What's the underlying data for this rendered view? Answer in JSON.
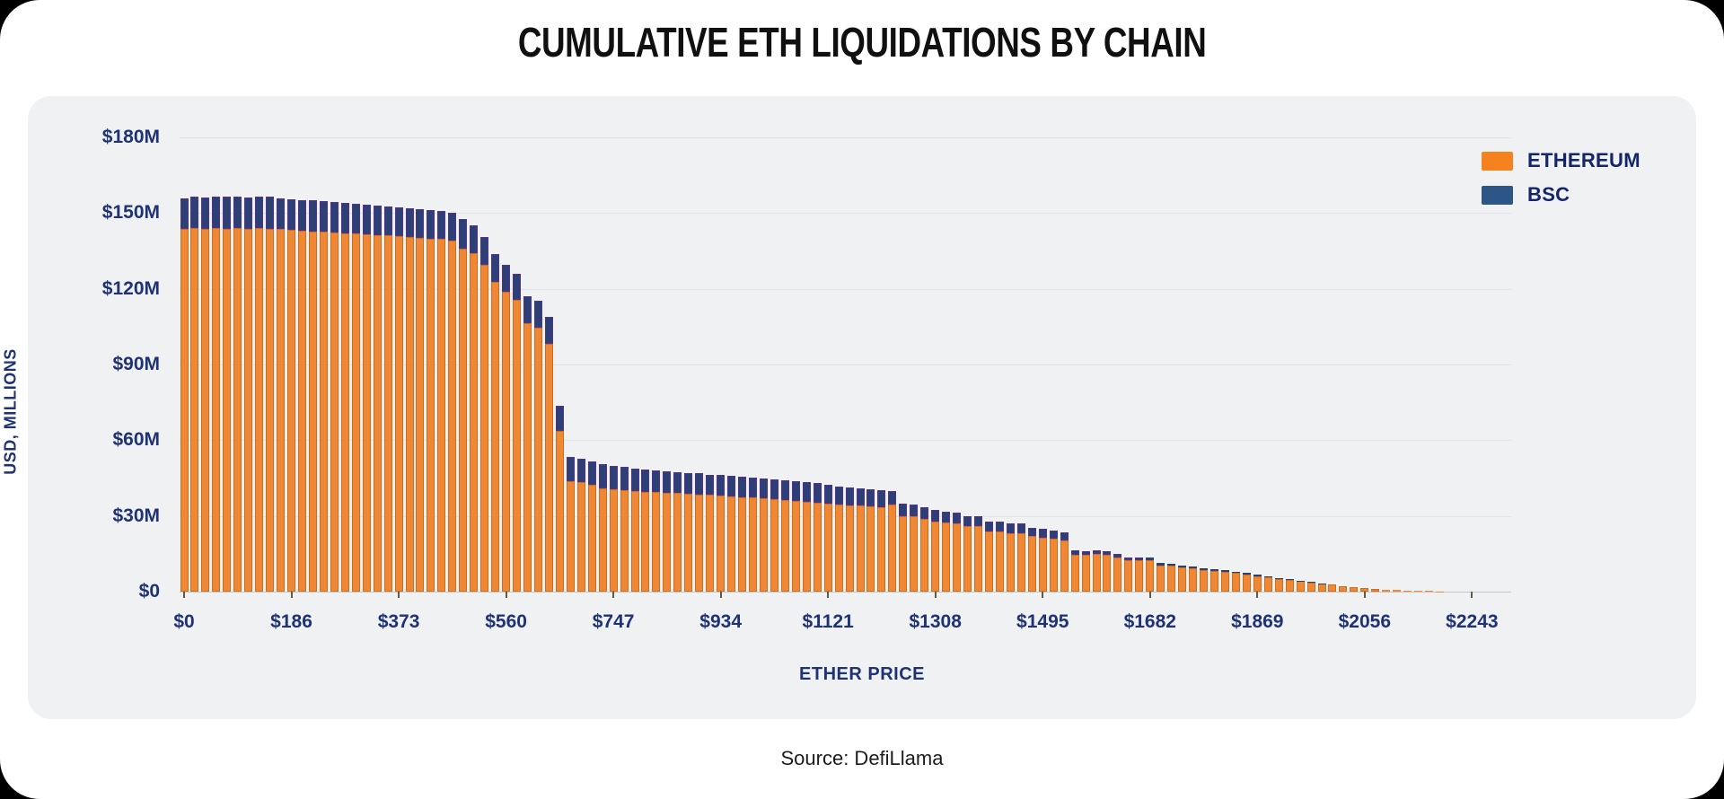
{
  "page": {
    "source": "Source: DefiLlama"
  },
  "legend": [
    {
      "label": "ETHEREUM",
      "color": "#f5821f"
    },
    {
      "label": "BSC",
      "color": "#2d5585"
    }
  ],
  "chart_data": {
    "type": "bar",
    "stacked": true,
    "title": "CUMULATIVE ETH LIQUIDATIONS BY CHAIN",
    "xlabel": "ETHER PRICE",
    "ylabel": "USD, MILLIONS",
    "x_tick_labels": [
      "$0",
      "$186",
      "$373",
      "$560",
      "$747",
      "$934",
      "$1121",
      "$1308",
      "$1495",
      "$1682",
      "$1869",
      "$2056",
      "$2243"
    ],
    "y_tick_labels": [
      "$0",
      "$30M",
      "$60M",
      "$90M",
      "$120M",
      "$150M",
      "$180M"
    ],
    "ylim": [
      0,
      180
    ],
    "y_unit": "USD millions",
    "x_unit": "ETH price (USD), bar step ≈ $18.7",
    "grid": "horizontal",
    "legend_position": "top-right",
    "prices": [
      0,
      19,
      37,
      56,
      75,
      93,
      112,
      131,
      150,
      168,
      187,
      206,
      224,
      243,
      262,
      280,
      299,
      318,
      336,
      355,
      374,
      393,
      411,
      430,
      449,
      467,
      486,
      505,
      523,
      542,
      561,
      580,
      598,
      617,
      636,
      654,
      673,
      692,
      710,
      729,
      748,
      766,
      785,
      804,
      822,
      841,
      860,
      879,
      897,
      916,
      935,
      953,
      972,
      991,
      1009,
      1028,
      1047,
      1065,
      1084,
      1103,
      1121,
      1140,
      1159,
      1177,
      1196,
      1215,
      1233,
      1252,
      1271,
      1290,
      1308,
      1327,
      1346,
      1364,
      1383,
      1402,
      1421,
      1439,
      1458,
      1477,
      1495,
      1514,
      1533,
      1551,
      1570,
      1589,
      1608,
      1626,
      1645,
      1664,
      1682,
      1701,
      1720,
      1738,
      1757,
      1776,
      1795,
      1813,
      1832,
      1851,
      1869,
      1888,
      1907,
      1925,
      1944,
      1963,
      1982,
      2000,
      2019,
      2038,
      2056,
      2075,
      2094,
      2113,
      2131,
      2150,
      2169,
      2187,
      2206,
      2225,
      2243,
      2262,
      2281,
      2300
    ],
    "series": [
      {
        "name": "ETHEREUM",
        "color": "#ef8735",
        "border_color": "#c96f1e",
        "values": [
          143.8,
          144.0,
          143.8,
          144.2,
          143.9,
          144.0,
          143.8,
          144.1,
          143.9,
          143.6,
          143.3,
          143.0,
          142.8,
          142.6,
          142.4,
          142.1,
          141.8,
          141.5,
          141.3,
          141.1,
          140.9,
          140.6,
          140.3,
          140.0,
          139.7,
          139.2,
          135.9,
          134.1,
          129.4,
          122.9,
          118.8,
          115.5,
          106.4,
          104.7,
          98.2,
          63.7,
          43.7,
          43.4,
          42.2,
          41.0,
          40.7,
          40.2,
          39.9,
          39.6,
          39.4,
          39.2,
          39.0,
          38.8,
          38.6,
          38.3,
          38.0,
          37.8,
          37.5,
          37.3,
          37.0,
          36.8,
          36.4,
          36.1,
          35.7,
          35.4,
          34.9,
          34.6,
          34.3,
          34.0,
          33.7,
          33.4,
          34.5,
          30.0,
          29.9,
          28.8,
          27.8,
          27.3,
          27.1,
          25.8,
          25.9,
          23.8,
          23.9,
          23.2,
          23.3,
          21.9,
          21.4,
          20.9,
          20.4,
          14.7,
          14.5,
          14.8,
          14.6,
          13.5,
          12.4,
          12.5,
          12.4,
          10.4,
          10.2,
          9.5,
          9.1,
          8.7,
          8.2,
          7.8,
          7.3,
          6.8,
          6.2,
          5.6,
          5.1,
          4.6,
          4.1,
          3.6,
          3.1,
          2.7,
          2.2,
          1.8,
          1.4,
          1.1,
          0.8,
          0.6,
          0.4,
          0.3,
          0.2,
          0.15,
          0.1,
          0.1,
          0.05,
          0,
          0,
          0
        ]
      },
      {
        "name": "BSC",
        "color": "#2c4076",
        "border_color": "#53318e",
        "values": [
          12.2,
          12.5,
          12.5,
          12.4,
          12.5,
          12.5,
          12.4,
          12.5,
          12.5,
          12.4,
          12.3,
          12.3,
          12.2,
          12.1,
          12.0,
          11.9,
          11.8,
          11.7,
          11.6,
          11.5,
          11.4,
          11.4,
          11.3,
          11.2,
          11.1,
          11.1,
          11.8,
          11.0,
          11.2,
          11.0,
          10.6,
          10.4,
          10.6,
          10.6,
          10.6,
          9.8,
          9.7,
          9.4,
          9.4,
          9.5,
          9.2,
          9.1,
          8.8,
          8.7,
          8.6,
          8.5,
          8.4,
          8.3,
          8.2,
          8.1,
          8.1,
          8.0,
          8.0,
          7.9,
          7.9,
          7.8,
          7.8,
          7.7,
          7.7,
          7.6,
          7.3,
          7.2,
          7.1,
          7.0,
          6.9,
          6.8,
          5.3,
          4.8,
          4.7,
          4.6,
          4.4,
          4.3,
          4.2,
          4.1,
          4.0,
          3.9,
          3.8,
          3.7,
          3.6,
          3.5,
          3.4,
          3.3,
          3.2,
          1.6,
          1.5,
          1.5,
          1.4,
          1.3,
          1.2,
          1.1,
          1.0,
          0.9,
          0.8,
          0.8,
          0.7,
          0.7,
          0.6,
          0.6,
          0.5,
          0.5,
          0.4,
          0.4,
          0.3,
          0.3,
          0.2,
          0.2,
          0.2,
          0.1,
          0.1,
          0.1,
          0.1,
          0.05,
          0,
          0,
          0,
          0,
          0,
          0,
          0,
          0,
          0,
          0,
          0,
          0
        ]
      }
    ]
  }
}
